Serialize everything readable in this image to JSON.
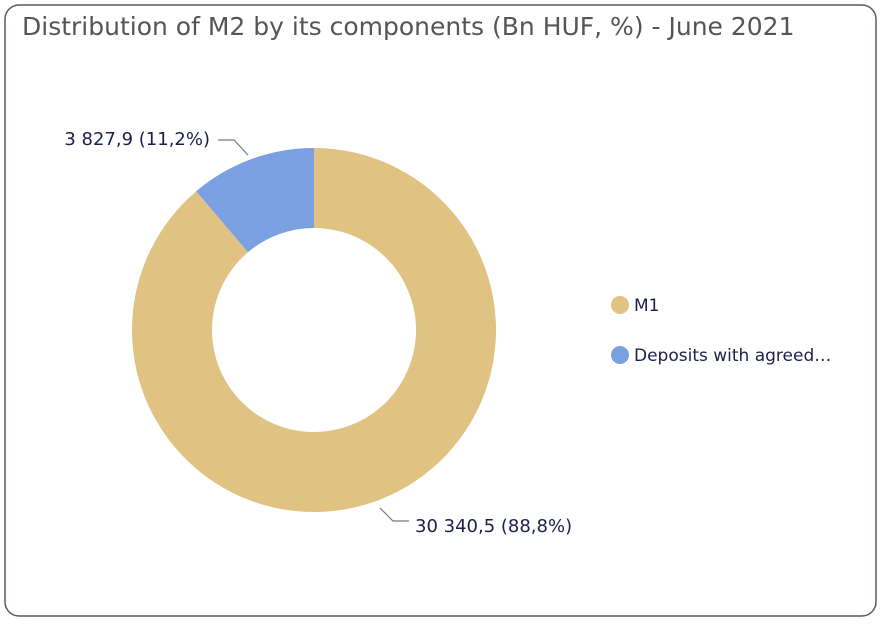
{
  "chart_data": {
    "type": "donut",
    "title": "Distribution of M2 by its components (Bn HUF, %) - June 2021",
    "categories": [
      "M1",
      "Deposits with agreed…"
    ],
    "values": [
      30340.5,
      3827.9
    ],
    "value_labels": [
      "30 340,5 (88,8%)",
      "3 827,9 (11,2%)"
    ],
    "colors": [
      "#e0c283",
      "#7aa0e2"
    ],
    "legend": "right"
  }
}
